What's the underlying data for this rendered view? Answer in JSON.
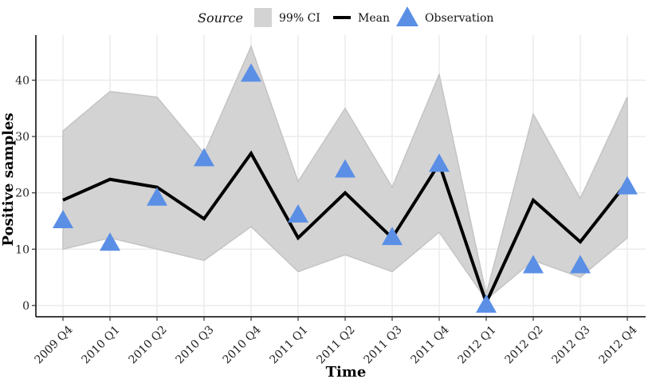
{
  "chart_data": {
    "type": "line",
    "title": "",
    "xlabel": "Time",
    "ylabel": "Positive samples",
    "categories": [
      "2009 Q4",
      "2010 Q1",
      "2010 Q2",
      "2010 Q3",
      "2010 Q4",
      "2011 Q1",
      "2011 Q2",
      "2011 Q3",
      "2011 Q4",
      "2012 Q1",
      "2012 Q2",
      "2012 Q3",
      "2012 Q4"
    ],
    "ylim": [
      -2,
      48
    ],
    "yticks": [
      0,
      10,
      20,
      30,
      40
    ],
    "grid": true,
    "legend": {
      "title": "Source",
      "placement": "top",
      "ci_label": "99% CI",
      "mean_label": "Mean",
      "obs_label": "Observation"
    },
    "series": [
      {
        "name": "Mean",
        "values": [
          18.7,
          22.4,
          21.0,
          15.4,
          27.0,
          12.0,
          20.0,
          12.0,
          25.2,
          0.5,
          18.7,
          11.3,
          21.9
        ]
      },
      {
        "name": "Observation",
        "values": [
          15,
          11,
          19,
          26,
          41,
          16,
          24,
          12,
          25,
          0,
          7,
          7,
          21
        ]
      }
    ],
    "ci_lower": [
      10,
      12,
      10,
      8,
      14,
      6,
      9,
      6,
      13,
      1,
      8,
      5,
      12
    ],
    "ci_upper": [
      31,
      38,
      37,
      27,
      46,
      22,
      35,
      21,
      41,
      2,
      34,
      19,
      37
    ],
    "colors": {
      "ci_fill": "#d3d3d3",
      "ci_stroke": "#c4c4c4",
      "mean": "#000000",
      "observation": "#5b8fe6",
      "grid": "#ebebeb"
    }
  }
}
